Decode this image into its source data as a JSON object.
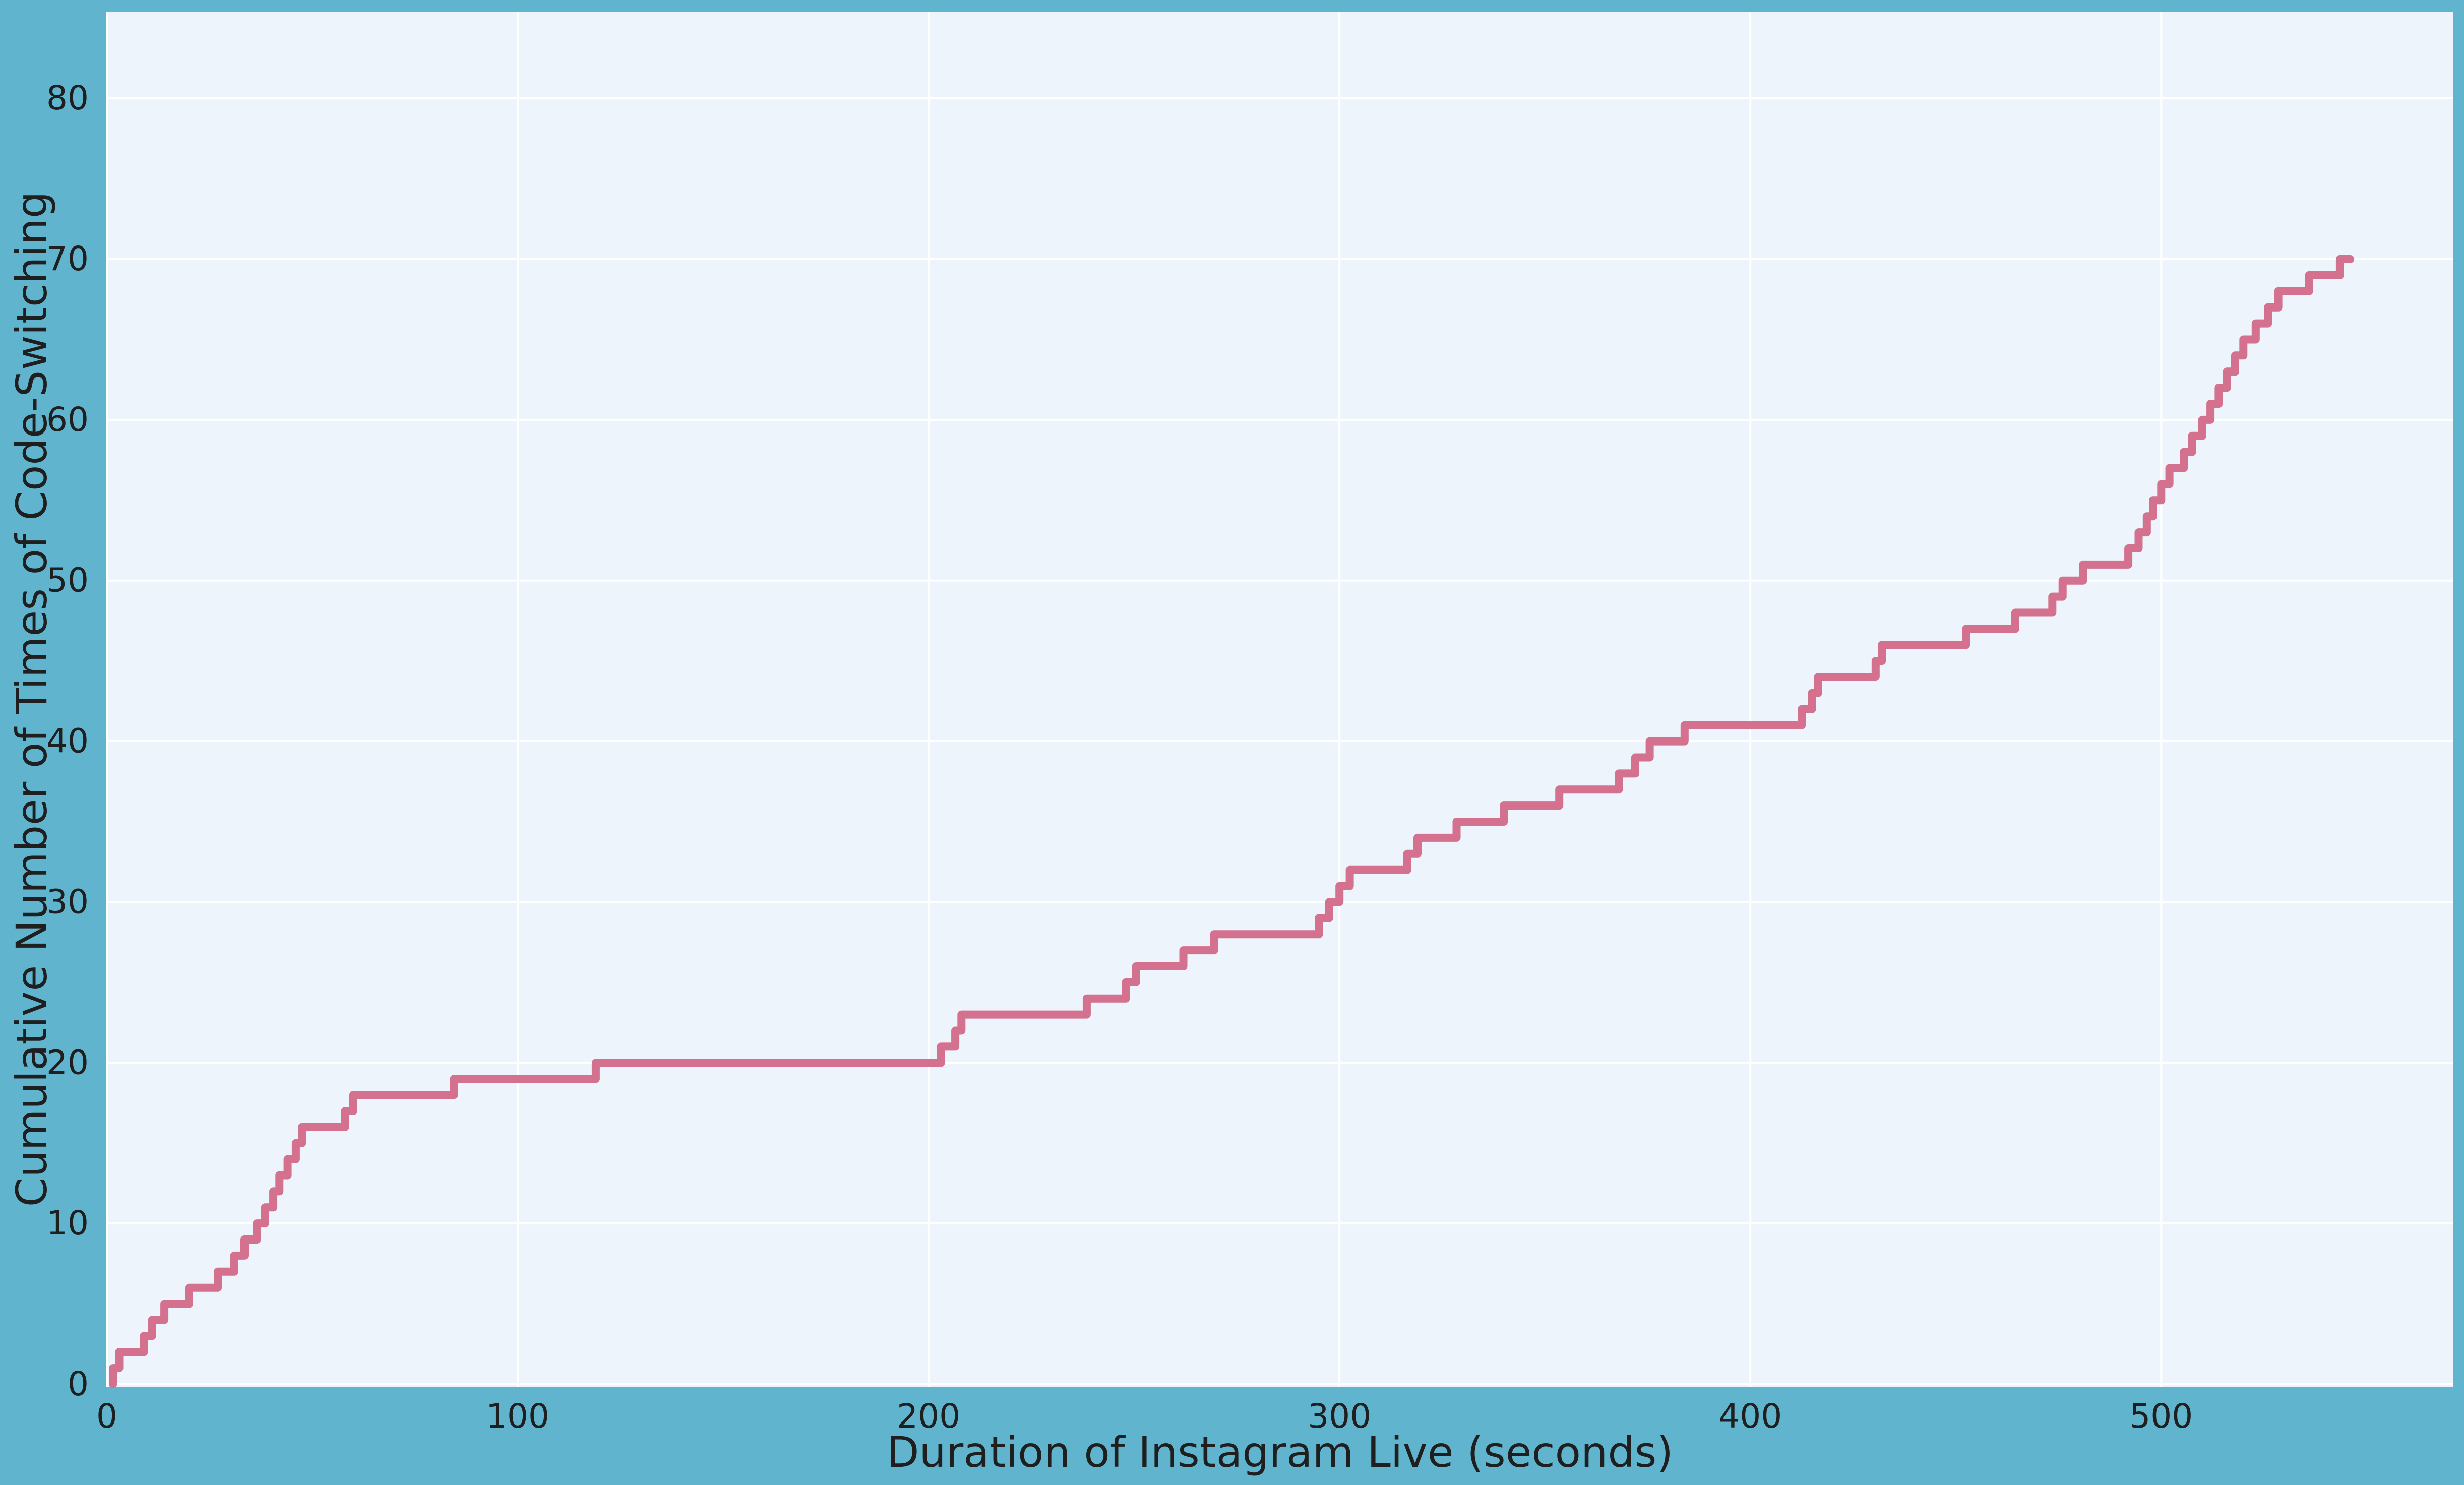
{
  "figure": {
    "background": "#60b4ce",
    "plot_bg": "#edf4fb",
    "grid_color": "#ffffff",
    "line_color": "#d4718f",
    "text_color": "#1f1f1f"
  },
  "chart_data": {
    "type": "line",
    "step_interpolation": "post",
    "title": "",
    "xlabel": "Duration of Instagram Live (seconds)",
    "ylabel": "Cumulative Number of Times of Code-Switching",
    "x_ticks": [
      0,
      100,
      200,
      300,
      400,
      500
    ],
    "y_ticks": [
      0,
      10,
      20,
      30,
      40,
      50,
      60,
      70,
      80
    ],
    "xlim": [
      0,
      571
    ],
    "ylim": [
      0,
      85.4
    ],
    "grid": true,
    "legend": false,
    "line_width": 16,
    "start_point": [
      1.5,
      0
    ],
    "end_time": 546,
    "points": [
      [
        1.5,
        1
      ],
      [
        3,
        2
      ],
      [
        9,
        3
      ],
      [
        11,
        4
      ],
      [
        14,
        5
      ],
      [
        20,
        6
      ],
      [
        27,
        7
      ],
      [
        31,
        8
      ],
      [
        33.5,
        9
      ],
      [
        36.5,
        10
      ],
      [
        38.5,
        11
      ],
      [
        40.5,
        12
      ],
      [
        42,
        13
      ],
      [
        44,
        14
      ],
      [
        46,
        15
      ],
      [
        47.5,
        16
      ],
      [
        58,
        17
      ],
      [
        60,
        18
      ],
      [
        84.5,
        19
      ],
      [
        119,
        20
      ],
      [
        203,
        21
      ],
      [
        206.5,
        22
      ],
      [
        208,
        23
      ],
      [
        238.5,
        24
      ],
      [
        248,
        25
      ],
      [
        250.5,
        26
      ],
      [
        262,
        27
      ],
      [
        269.5,
        28
      ],
      [
        295,
        29
      ],
      [
        297.5,
        30
      ],
      [
        300,
        31
      ],
      [
        302.5,
        32
      ],
      [
        316.5,
        33
      ],
      [
        319,
        34
      ],
      [
        328.5,
        35
      ],
      [
        340,
        36
      ],
      [
        353.5,
        37
      ],
      [
        368,
        38
      ],
      [
        372,
        39
      ],
      [
        375.5,
        40
      ],
      [
        384,
        41
      ],
      [
        412.5,
        42
      ],
      [
        415,
        43
      ],
      [
        416.5,
        44
      ],
      [
        430.5,
        45
      ],
      [
        432,
        46
      ],
      [
        452.5,
        47
      ],
      [
        464.5,
        48
      ],
      [
        473.5,
        49
      ],
      [
        476,
        50
      ],
      [
        481,
        51
      ],
      [
        492,
        52
      ],
      [
        494.5,
        53
      ],
      [
        496.5,
        54
      ],
      [
        498,
        55
      ],
      [
        500,
        56
      ],
      [
        502,
        57
      ],
      [
        505.5,
        58
      ],
      [
        507.5,
        59
      ],
      [
        510,
        60
      ],
      [
        512,
        61
      ],
      [
        514,
        62
      ],
      [
        516,
        63
      ],
      [
        518,
        64
      ],
      [
        520,
        65
      ],
      [
        523,
        66
      ],
      [
        526,
        67
      ],
      [
        528.5,
        68
      ],
      [
        536,
        69
      ],
      [
        543.5,
        70
      ]
    ]
  }
}
